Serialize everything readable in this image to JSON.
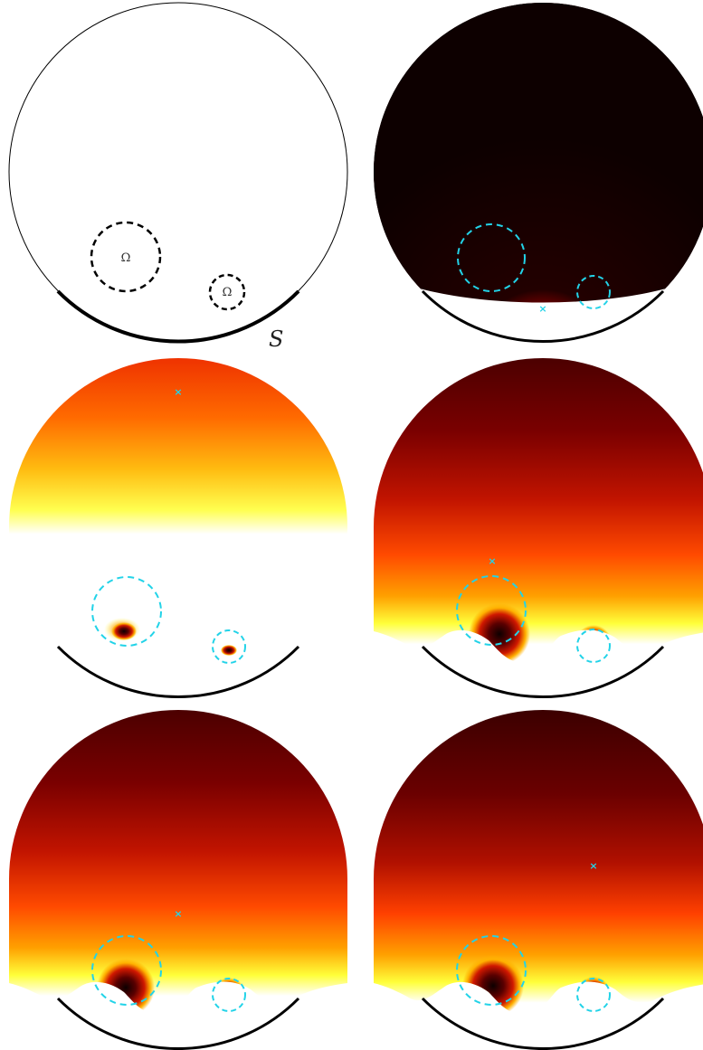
{
  "labels": {
    "omega": "Ω",
    "boundary": "S"
  },
  "colors": {
    "background": "#ffffff",
    "outline": "#000000",
    "inclusion_dash_schematic": "#000000",
    "inclusion_dash_plot": "#22d3e8",
    "marker": "#22d3e8",
    "colormap": [
      "#0d0000",
      "#3a0000",
      "#7a0000",
      "#c21400",
      "#ff5a00",
      "#ffb000",
      "#ffff3a",
      "#ffffff"
    ]
  },
  "panels": [
    {
      "id": "schematic",
      "type": "schematic"
    },
    {
      "id": "field-1",
      "type": "field",
      "marker": true
    },
    {
      "id": "field-2",
      "type": "field",
      "marker": true
    },
    {
      "id": "field-3",
      "type": "field",
      "marker": true
    },
    {
      "id": "field-4",
      "type": "field",
      "marker": true
    },
    {
      "id": "field-5",
      "type": "field",
      "marker": true
    }
  ]
}
